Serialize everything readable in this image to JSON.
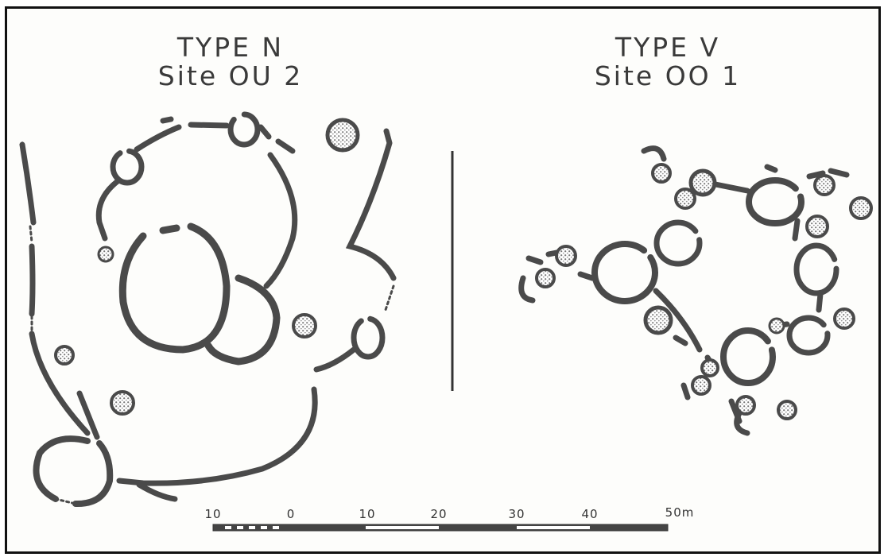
{
  "left_site": {
    "type_label": "TYPE N",
    "site_label": "Site OU 2"
  },
  "right_site": {
    "type_label": "TYPE V",
    "site_label": "Site OO 1"
  },
  "scale": {
    "labels": [
      "10",
      "0",
      "10",
      "20",
      "30",
      "40",
      "50m"
    ]
  },
  "colors": {
    "ink": "#4a4a4a",
    "stipple": "#9a9a9a",
    "background": "#fdfdfb"
  }
}
